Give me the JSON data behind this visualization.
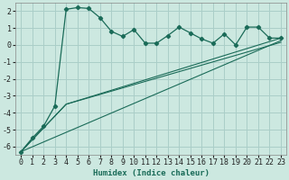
{
  "xlabel": "Humidex (Indice chaleur)",
  "bg_color": "#cce8e0",
  "grid_color": "#aacec8",
  "line_color": "#1a6b58",
  "xlim": [
    -0.5,
    23.5
  ],
  "ylim": [
    -6.5,
    2.5
  ],
  "yticks": [
    -6,
    -5,
    -4,
    -3,
    -2,
    -1,
    0,
    1,
    2
  ],
  "xticks": [
    0,
    1,
    2,
    3,
    4,
    5,
    6,
    7,
    8,
    9,
    10,
    11,
    12,
    13,
    14,
    15,
    16,
    17,
    18,
    19,
    20,
    21,
    22,
    23
  ],
  "series1_x": [
    0,
    1,
    2,
    3,
    4,
    5,
    6,
    7,
    8,
    9,
    10,
    11,
    12,
    13,
    14,
    15,
    16,
    17,
    18,
    19,
    20,
    21,
    22,
    23
  ],
  "series1_y": [
    -6.3,
    -5.5,
    -4.8,
    -3.6,
    2.1,
    2.2,
    2.15,
    1.6,
    0.8,
    0.5,
    0.9,
    0.1,
    0.1,
    0.55,
    1.05,
    0.7,
    0.35,
    0.1,
    0.65,
    0.0,
    1.05,
    1.05,
    0.4,
    0.4
  ],
  "trend1_x": [
    0,
    4,
    23
  ],
  "trend1_y": [
    -6.3,
    -3.5,
    0.4
  ],
  "trend2_x": [
    0,
    4,
    23
  ],
  "trend2_y": [
    -6.3,
    -3.5,
    0.15
  ],
  "trend3_x": [
    0,
    23
  ],
  "trend3_y": [
    -6.3,
    0.25
  ],
  "font_size": 6.5
}
